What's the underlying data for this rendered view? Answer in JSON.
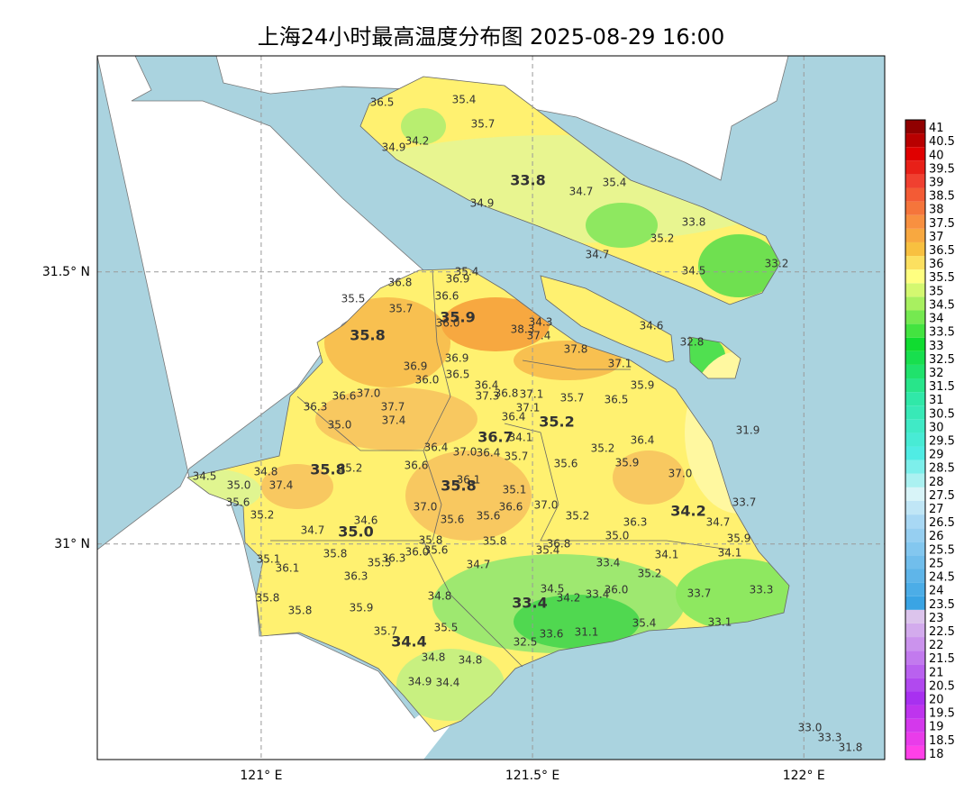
{
  "chart_data": {
    "type": "map",
    "title": "上海24小时最高温度分布图 2025-08-29 16:00",
    "xlim": [
      120.698,
      122.149
    ],
    "ylim": [
      30.604,
      31.897
    ],
    "xticks": [
      {
        "value": 121,
        "label": "121° E"
      },
      {
        "value": 121.5,
        "label": "121.5° E"
      },
      {
        "value": 122,
        "label": "122° E"
      }
    ],
    "yticks": [
      {
        "value": 31,
        "label": "31° N"
      },
      {
        "value": 31.5,
        "label": "31.5° N"
      }
    ],
    "grid": true,
    "colorbar": [
      18,
      18.5,
      19,
      19.5,
      20,
      20.5,
      21,
      21.5,
      22,
      22.5,
      23,
      23.5,
      24,
      24.5,
      25,
      25.5,
      26,
      26.5,
      27,
      27.5,
      28,
      28.5,
      29,
      29.5,
      30,
      30.5,
      31,
      31.5,
      32,
      32.5,
      33,
      33.5,
      34,
      34.5,
      35,
      35.5,
      36,
      36.5,
      37,
      37.5,
      38,
      38.5,
      39,
      39.5,
      40,
      40.5,
      41
    ],
    "stations": [
      "36.5",
      "35.4",
      "35.7",
      "34.2",
      "34.9",
      "33.8",
      "34.7",
      "35.4",
      "34.9",
      "33.8",
      "35.2",
      "34.7",
      "34.5",
      "33.2",
      "35.4",
      "36.9",
      "36.8",
      "35.5",
      "36.6",
      "35.7",
      "35.9",
      "36.0",
      "34.3",
      "38.3",
      "37.4",
      "35.8",
      "34.6",
      "32.8",
      "37.8",
      "36.9",
      "37.1",
      "36.9",
      "36.5",
      "36.0",
      "35.9",
      "36.4",
      "36.6",
      "37.0",
      "37.3",
      "36.8",
      "37.1",
      "35.7",
      "36.5",
      "37.1",
      "36.3",
      "37.7",
      "36.4",
      "35.2",
      "37.4",
      "35.0",
      "31.9",
      "36.7",
      "34.1",
      "36.4",
      "36.4",
      "35.2",
      "37.0",
      "36.4",
      "35.7",
      "35.6",
      "35.9",
      "34.5",
      "34.8",
      "35.8",
      "35.2",
      "36.6",
      "37.0",
      "36.1",
      "35.0",
      "37.4",
      "35.8",
      "35.1",
      "35.6",
      "37.0",
      "36.6",
      "37.0",
      "33.7",
      "35.2",
      "35.6",
      "35.6",
      "35.2",
      "34.2",
      "34.7",
      "36.3",
      "34.6",
      "34.7",
      "35.0",
      "35.0",
      "35.9",
      "35.8",
      "35.8",
      "36.8",
      "35.4",
      "36.0",
      "35.6",
      "34.1",
      "34.1",
      "35.8",
      "35.5",
      "36.3",
      "35.1",
      "36.1",
      "34.7",
      "33.4",
      "36.3",
      "35.2",
      "34.5",
      "34.2",
      "33.4",
      "36.0",
      "33.7",
      "33.3",
      "34.8",
      "35.8",
      "33.4",
      "35.9",
      "35.8",
      "35.4",
      "33.1",
      "35.5",
      "35.7",
      "34.4",
      "32.5",
      "33.6",
      "31.1",
      "34.8",
      "34.8",
      "34.9",
      "34.4",
      "33.0",
      "33.3",
      "31.8"
    ]
  }
}
